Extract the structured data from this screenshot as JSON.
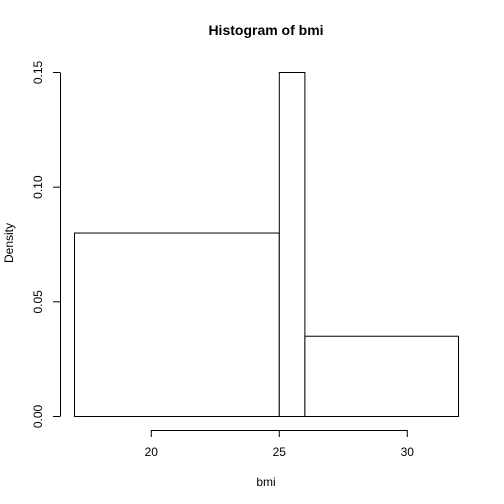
{
  "chart_data": {
    "type": "histogram",
    "title": "Histogram of bmi",
    "xlabel": "bmi",
    "ylabel": "Density",
    "bins": [
      {
        "start": 17,
        "end": 25,
        "density": 0.08
      },
      {
        "start": 25,
        "end": 26,
        "density": 0.15
      },
      {
        "start": 26,
        "end": 32,
        "density": 0.035
      }
    ],
    "xticks": [
      20,
      25,
      30
    ],
    "xtick_labels": [
      "20",
      "25",
      "30"
    ],
    "yticks": [
      0,
      0.05,
      0.1,
      0.15
    ],
    "ytick_labels": [
      "0.00",
      "0.05",
      "0.10",
      "0.15"
    ],
    "xlim": [
      17,
      32
    ],
    "ylim": [
      0,
      0.15
    ],
    "grid": false,
    "legend": false
  }
}
